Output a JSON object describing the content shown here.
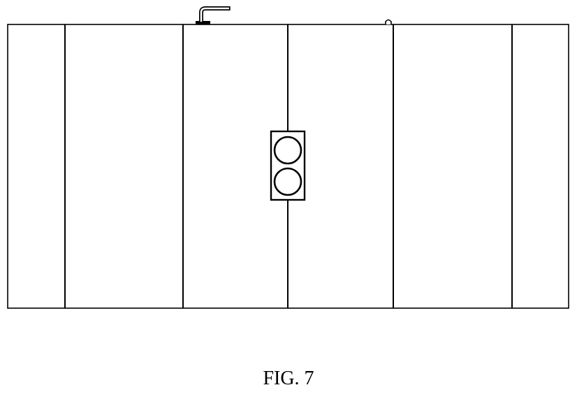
{
  "figure": {
    "caption": "FIG. 7"
  },
  "colors": {
    "stroke": "#000000",
    "background": "#ffffff"
  }
}
